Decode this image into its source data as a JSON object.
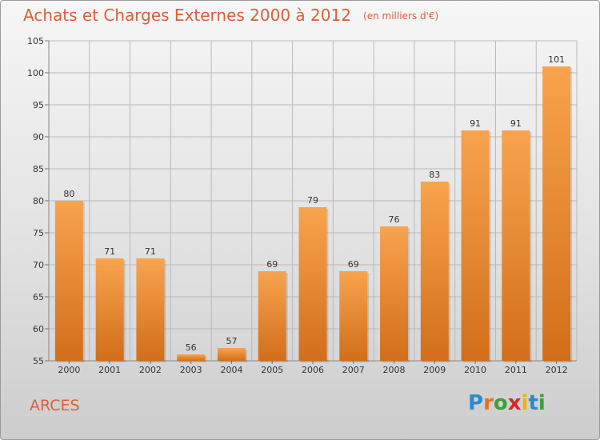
{
  "header": {
    "title": "Achats et Charges Externes 2000 à 2012",
    "unit": "(en milliers d'€)"
  },
  "footer": {
    "commune": "ARCES",
    "logo_text": "Proxiti",
    "logo_letters": [
      {
        "ch": "P",
        "color": "#2a8bd1"
      },
      {
        "ch": "r",
        "color": "#e8701c"
      },
      {
        "ch": "o",
        "color": "#3aa23a"
      },
      {
        "ch": "x",
        "color": "#d62828"
      },
      {
        "ch": "i",
        "color": "#f0b400"
      },
      {
        "ch": "t",
        "color": "#2a8bd1"
      },
      {
        "ch": "i",
        "color": "#3aa23a"
      }
    ]
  },
  "colors": {
    "accent": "#d8603c",
    "bar_top": "#f8a34e",
    "bar_bottom": "#d26e1a",
    "grid": "#b9b9b9",
    "axis_text": "#333333"
  },
  "chart_data": {
    "type": "bar",
    "categories": [
      "2000",
      "2001",
      "2002",
      "2003",
      "2004",
      "2005",
      "2006",
      "2007",
      "2008",
      "2009",
      "2010",
      "2011",
      "2012"
    ],
    "values": [
      80,
      71,
      71,
      56,
      57,
      69,
      79,
      69,
      76,
      83,
      91,
      91,
      101
    ],
    "ylim": [
      55,
      105
    ],
    "yticks": [
      55,
      60,
      65,
      70,
      75,
      80,
      85,
      90,
      95,
      100,
      105
    ],
    "grid": true,
    "data_labels": true
  }
}
